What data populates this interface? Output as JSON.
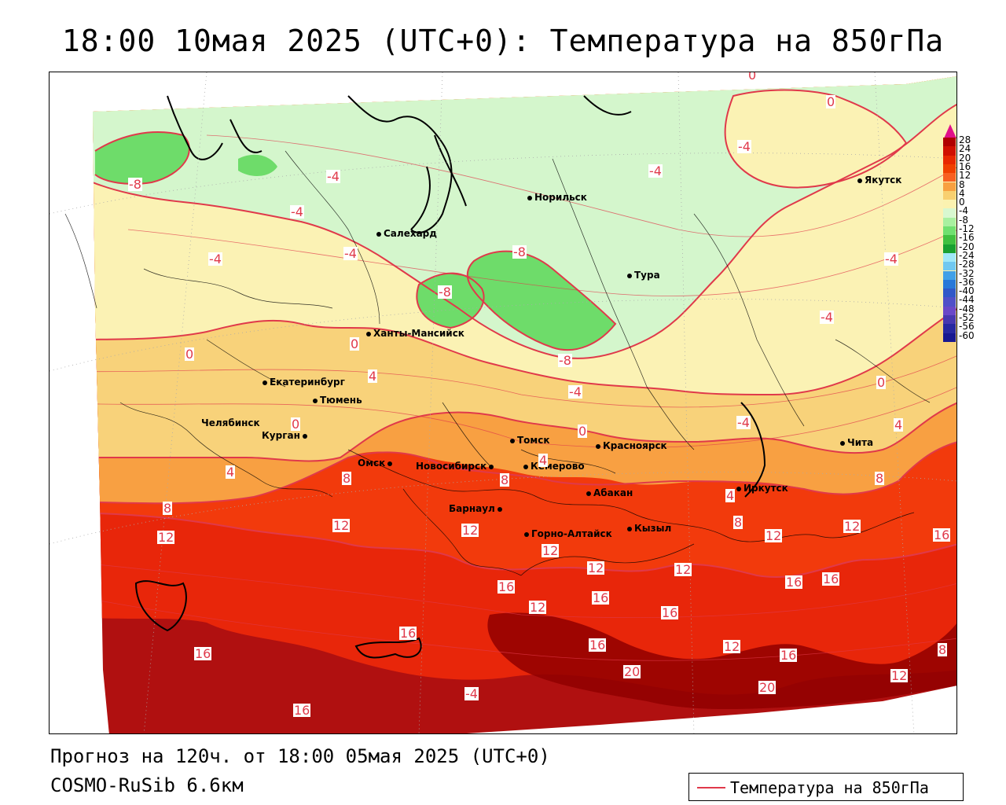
{
  "title": "18:00 10мая 2025 (UTC+0): Температура на 850гПа",
  "forecast_line": "Прогноз на 120ч. от 18:00 05мая 2025 (UTC+0)",
  "model_line": "COSMO-RuSib 6.6км",
  "legend_label": "Температура на 850гПа",
  "legend_color": "#e0394a",
  "colorbar": {
    "labels": [
      "28",
      "24",
      "20",
      "16",
      "12",
      "8",
      "4",
      "0",
      "-4",
      "-8",
      "-12",
      "-16",
      "-20",
      "-24",
      "-28",
      "-32",
      "-36",
      "-40",
      "-44",
      "-48",
      "-52",
      "-56",
      "-60"
    ],
    "colors": [
      "#b00000",
      "#d01000",
      "#e82800",
      "#f04000",
      "#f86020",
      "#f8a040",
      "#f8d070",
      "#fbf2b0",
      "#d8f8d0",
      "#a8f0a0",
      "#70e070",
      "#40c040",
      "#18a030",
      "#a0e8f8",
      "#70c8f0",
      "#40a0e8",
      "#2878d8",
      "#3058c8",
      "#5050c8",
      "#6a48c8",
      "#4838b0",
      "#2828a0",
      "#181890"
    ],
    "top_marker_color": "#e0108a"
  },
  "cities": [
    {
      "name": "Норильск"
    },
    {
      "name": "Якутск"
    },
    {
      "name": "Салехард"
    },
    {
      "name": "Тура"
    },
    {
      "name": "Ханты-Мансийск"
    },
    {
      "name": "Екатеринбург"
    },
    {
      "name": "Тюмень"
    },
    {
      "name": "Челябинск"
    },
    {
      "name": "Курган"
    },
    {
      "name": "Омск"
    },
    {
      "name": "Новосибирск"
    },
    {
      "name": "Томск"
    },
    {
      "name": "Кемерово"
    },
    {
      "name": "Красноярск"
    },
    {
      "name": "Барнаул"
    },
    {
      "name": "Абакан"
    },
    {
      "name": "Горно-Алтайск"
    },
    {
      "name": "Кызыл"
    },
    {
      "name": "Иркутск"
    },
    {
      "name": "Чита"
    }
  ],
  "isotherm_labels": [
    "0",
    "0",
    "-4",
    "-8",
    "-4",
    "-4",
    "-4",
    "-4",
    "-4",
    "-8",
    "-8",
    "-8",
    "-4",
    "-4",
    "0",
    "0",
    "4",
    "0",
    "4",
    "0",
    "-4",
    "0",
    "4",
    "4",
    "8",
    "8",
    "8",
    "12",
    "12",
    "12",
    "12",
    "12",
    "12",
    "16",
    "12",
    "16",
    "16",
    "16",
    "12",
    "16",
    "16",
    "16",
    "20",
    "12",
    "16",
    "16",
    "12",
    "16",
    "20",
    "12",
    "16",
    "8",
    "8",
    "8",
    "4",
    "-4",
    "-4"
  ]
}
